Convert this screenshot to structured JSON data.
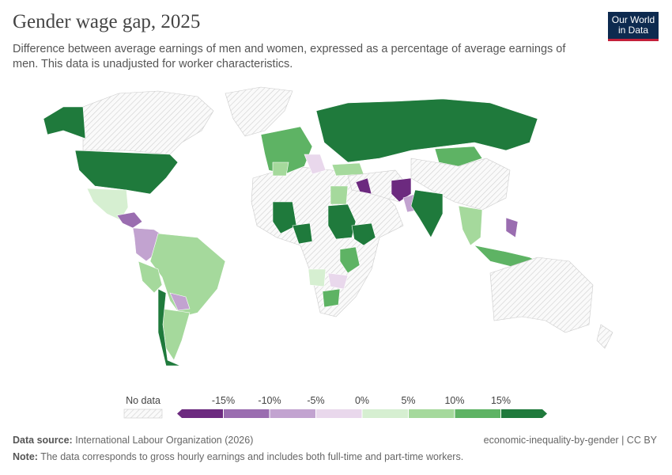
{
  "header": {
    "title": "Gender wage gap, 2025",
    "subtitle_lines": [
      "Difference between average earnings of men and women, expressed as a percentage of average earnings of",
      "men. This data is unadjusted for worker characteristics."
    ],
    "logo_lines": [
      "Our World",
      "in Data"
    ]
  },
  "legend": {
    "no_data_label": "No data",
    "ticks": [
      {
        "value": -15,
        "label": "-15%"
      },
      {
        "value": -10,
        "label": "-10%"
      },
      {
        "value": -5,
        "label": "-5%"
      },
      {
        "value": 0,
        "label": "0%"
      },
      {
        "value": 5,
        "label": "5%"
      },
      {
        "value": 10,
        "label": "10%"
      },
      {
        "value": 15,
        "label": "15%"
      }
    ],
    "colors": [
      "#6c2a7f",
      "#9a6db0",
      "#c2a3d0",
      "#e9d8ec",
      "#d6efd1",
      "#a5d99c",
      "#5eb364",
      "#1f7a3c"
    ]
  },
  "footer": {
    "source_label": "Data source:",
    "source": "International Labour Organization (2026)",
    "slug": "economic-inequality-by-gender | CC BY",
    "note_label": "Note:",
    "note": "The data corresponds to gross hourly earnings and includes both full-time and part-time workers."
  }
}
